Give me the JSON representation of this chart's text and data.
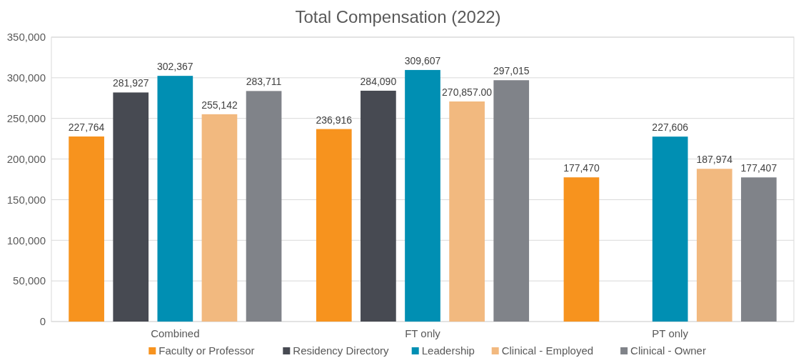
{
  "chart_data": {
    "type": "bar",
    "title": "Total Compensation (2022)",
    "categories": [
      "Combined",
      "FT only",
      "PT only"
    ],
    "series": [
      {
        "name": "Faculty or Professor",
        "color": "#f7931e",
        "values": [
          227764,
          236916,
          177470
        ],
        "value_labels": [
          "227,764",
          "236,916",
          "177,470"
        ]
      },
      {
        "name": "Residency Directory",
        "color": "#474a52",
        "values": [
          281927,
          284090,
          null
        ],
        "value_labels": [
          "281,927",
          "284,090",
          null
        ]
      },
      {
        "name": "Leadership",
        "color": "#008fb3",
        "values": [
          302367,
          309607,
          227606
        ],
        "value_labels": [
          "302,367",
          "309,607",
          "227,606"
        ]
      },
      {
        "name": "Clinical - Employed",
        "color": "#f2b97f",
        "values": [
          255142,
          270857,
          187974
        ],
        "value_labels": [
          "255,142",
          "270,857.00",
          "187,974"
        ]
      },
      {
        "name": "Clinical - Owner",
        "color": "#808389",
        "values": [
          283711,
          297015,
          177407
        ],
        "value_labels": [
          "283,711",
          "297,015",
          "177,407"
        ]
      }
    ],
    "ylim": [
      0,
      350000
    ],
    "yticks": [
      {
        "value": 0,
        "label": "0"
      },
      {
        "value": 50000,
        "label": "50,000"
      },
      {
        "value": 100000,
        "label": "100,000"
      },
      {
        "value": 150000,
        "label": "150,000"
      },
      {
        "value": 200000,
        "label": "200,000"
      },
      {
        "value": 250000,
        "label": "250,000"
      },
      {
        "value": 300000,
        "label": "300,000"
      },
      {
        "value": 350000,
        "label": "350,000"
      }
    ],
    "grid": "y",
    "legend": "bottom"
  }
}
